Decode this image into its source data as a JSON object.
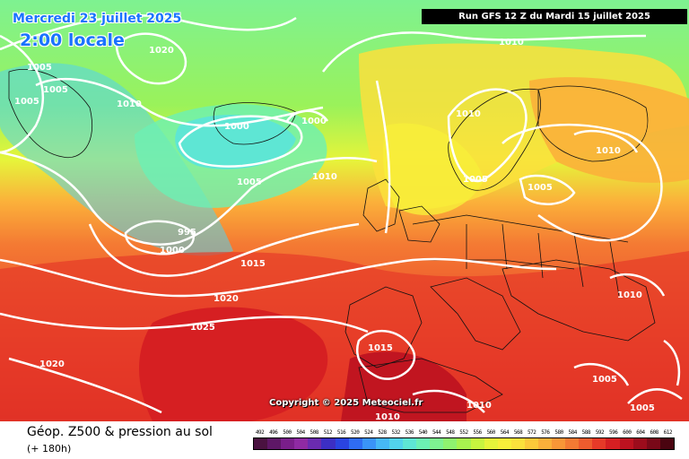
{
  "header": {
    "date": "Mercredi 23 juillet 2025",
    "time": "2:00 locale",
    "run": "Run GFS 12 Z du Mardi 15 juillet 2025"
  },
  "copyright": "Copyright © 2025 Meteociel.fr",
  "footer": {
    "title": "Géop. Z500 & pression au sol",
    "subtitle": "(+ 180h)"
  },
  "isobar_labels": [
    "1010",
    "1020",
    "1005",
    "1005",
    "1005",
    "1010",
    "1000",
    "1000",
    "1005",
    "1010",
    "995",
    "1000",
    "1015",
    "1020",
    "1025",
    "1020",
    "1015",
    "1010",
    "1010",
    "1005",
    "1005",
    "1010",
    "1010",
    "1005",
    "1005",
    "1010"
  ],
  "scale": {
    "values": [
      "492",
      "496",
      "500",
      "504",
      "508",
      "512",
      "516",
      "520",
      "524",
      "528",
      "532",
      "536",
      "540",
      "544",
      "548",
      "552",
      "556",
      "560",
      "564",
      "568",
      "572",
      "576",
      "580",
      "584",
      "588",
      "592",
      "596",
      "600",
      "604",
      "608",
      "612"
    ],
    "colors": [
      "#4a1240",
      "#5e1766",
      "#7a1e8a",
      "#8f2aa3",
      "#6a2bb0",
      "#3c2fc4",
      "#2a44e0",
      "#2f6cf2",
      "#3a94f7",
      "#46b8f5",
      "#52d3ec",
      "#5ee6d4",
      "#6cf0b4",
      "#7ef291",
      "#8ff26f",
      "#a8f24f",
      "#c7f43f",
      "#e6f43a",
      "#f8ef3a",
      "#fbe13c",
      "#fcc93a",
      "#fbb03a",
      "#f99637",
      "#f47a33",
      "#ee5c2e",
      "#e63a28",
      "#d61f22",
      "#bd1220",
      "#9c0c1c",
      "#790818",
      "#4a0410"
    ]
  }
}
